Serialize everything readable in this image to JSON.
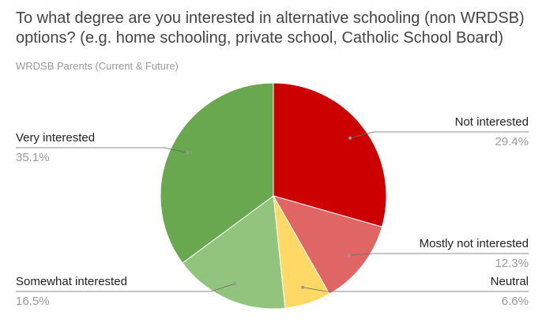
{
  "chart_data": {
    "type": "pie",
    "title": "To what degree are you interested in alternative schooling (non WRDSB) options? (e.g. home schooling, private school, Catholic School Board)",
    "subtitle": "WRDSB Parents (Current & Future)",
    "categories": [
      "Not interested",
      "Mostly not interested",
      "Neutral",
      "Somewhat interested",
      "Very interested"
    ],
    "values": [
      29.4,
      12.3,
      6.6,
      16.5,
      35.1
    ],
    "value_labels": [
      "29.4%",
      "12.3%",
      "6.6%",
      "16.5%",
      "35.1%"
    ],
    "colors": [
      "#cc0000",
      "#e06666",
      "#ffd966",
      "#93c47d",
      "#6aa84f"
    ]
  }
}
